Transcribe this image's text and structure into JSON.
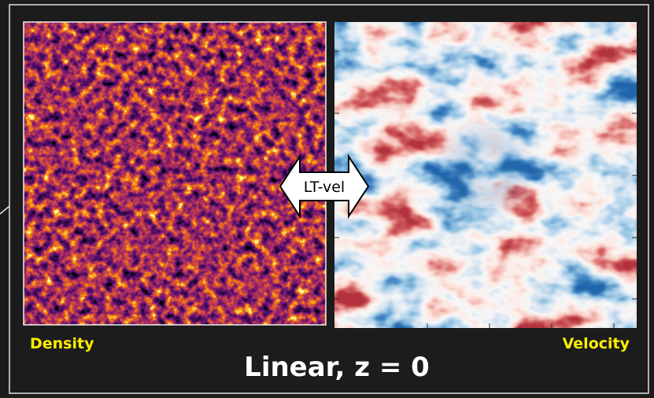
{
  "panels": {
    "left_label": "Density",
    "right_label": "Velocity"
  },
  "arrow": {
    "label": "LT-vel"
  },
  "title": "Linear, z = 0"
}
